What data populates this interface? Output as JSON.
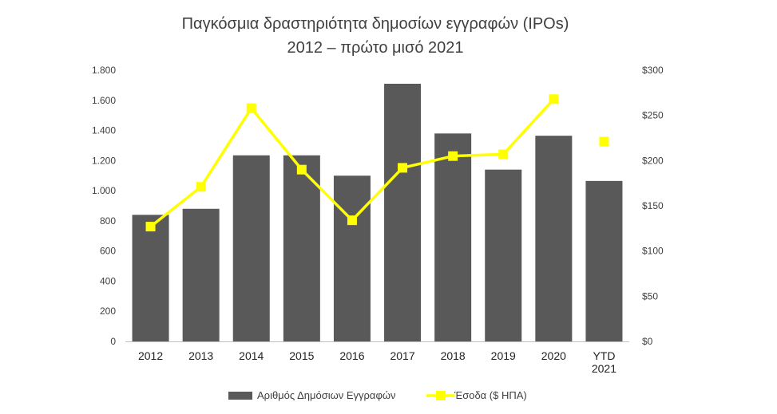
{
  "chart_data": {
    "type": "bar",
    "title": [
      "Παγκόσμια δραστηριότητα δημοσίων εγγραφών (IPOs)",
      "2012 – πρώτο μισό 2021"
    ],
    "categories": [
      [
        "2012"
      ],
      [
        "2013"
      ],
      [
        "2014"
      ],
      [
        "2015"
      ],
      [
        "2016"
      ],
      [
        "2017"
      ],
      [
        "2018"
      ],
      [
        "2019"
      ],
      [
        "2020"
      ],
      [
        "YTD",
        "2021"
      ]
    ],
    "series": [
      {
        "name": "Αριθμός Δημόσιων Εγγραφών",
        "type": "bar",
        "axis": "left",
        "color": "#595959",
        "values": [
          840,
          880,
          1235,
          1235,
          1100,
          1710,
          1380,
          1140,
          1365,
          1065
        ]
      },
      {
        "name": "Έσοδα ($ ΗΠΑ)",
        "type": "line",
        "axis": "right",
        "color": "#FFFF00",
        "values": [
          127,
          171,
          258,
          190,
          134,
          192,
          205,
          207,
          268,
          221
        ],
        "connect_last": false
      }
    ],
    "y_left": {
      "ylim": [
        0,
        1800
      ],
      "ticks": [
        0,
        200,
        400,
        600,
        800,
        1000,
        1200,
        1400,
        1600,
        1800
      ],
      "tick_labels": [
        "0",
        "200",
        "400",
        "600",
        "800",
        "1.000",
        "1.200",
        "1.400",
        "1.600",
        "1.800"
      ]
    },
    "y_right": {
      "ylim": [
        0,
        300
      ],
      "ticks": [
        0,
        50,
        100,
        150,
        200,
        250,
        300
      ],
      "tick_labels": [
        "$0",
        "$50",
        "$100",
        "$150",
        "$200",
        "$250",
        "$300"
      ]
    },
    "grid": false,
    "legend_position": "bottom"
  }
}
